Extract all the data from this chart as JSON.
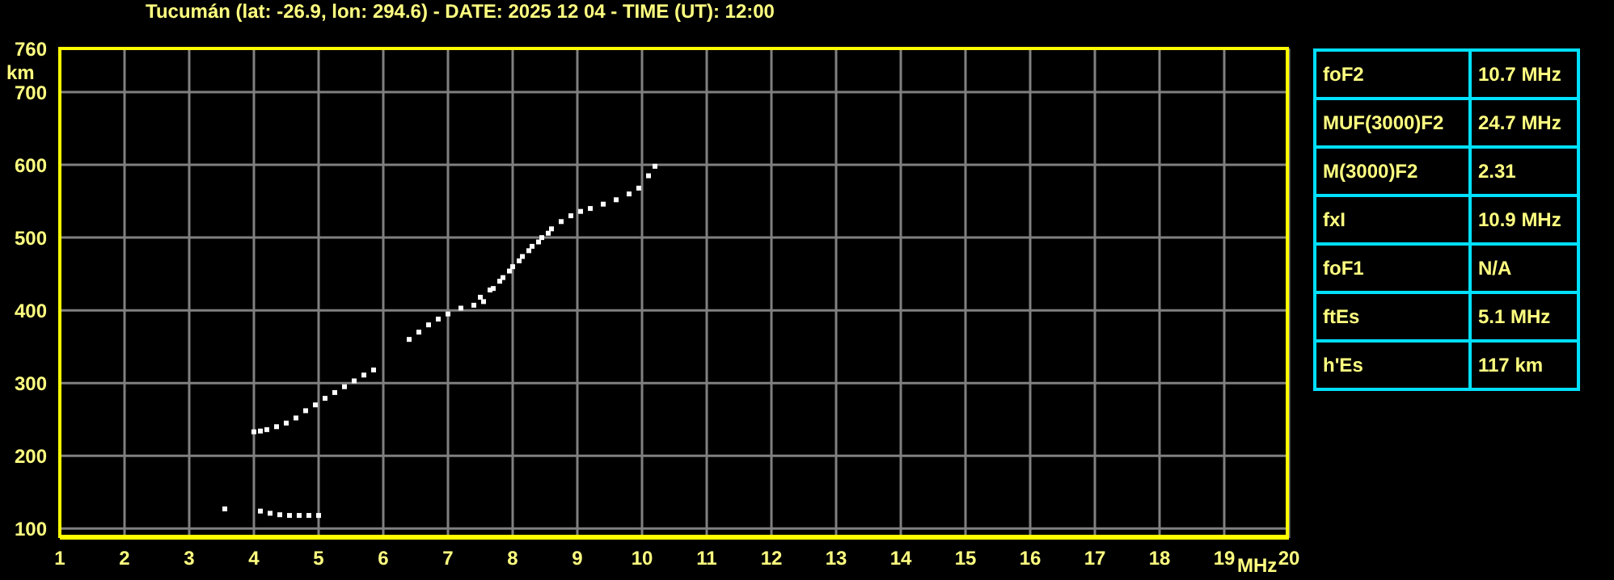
{
  "chart_data": [
    {
      "type": "scatter",
      "title": "Tucumán (lat: -26.9, lon: 294.6) - DATE: 2025 12 04 - TIME (UT): 12:00",
      "xlabel": "MHz",
      "ylabel": "km",
      "xlim": [
        1,
        20
      ],
      "xticks": [
        1,
        2,
        3,
        4,
        5,
        6,
        7,
        8,
        9,
        10,
        11,
        12,
        13,
        14,
        15,
        16,
        17,
        18,
        19,
        20
      ],
      "ylim": [
        87,
        760
      ],
      "yticks": [
        100,
        200,
        300,
        400,
        500,
        600,
        700,
        760
      ],
      "grid": true,
      "marker": "square",
      "series": [
        {
          "color": "#ffffff",
          "x": [
            4.0,
            4.1,
            4.2,
            4.35,
            4.5,
            4.65,
            4.8,
            4.95,
            5.1,
            5.25,
            5.4,
            5.55,
            5.7,
            5.85,
            6.4,
            6.55,
            6.7,
            6.85,
            7.0,
            7.2,
            7.4,
            7.55,
            7.7,
            7.85,
            8.0,
            8.15,
            8.3,
            8.45,
            8.6,
            8.75,
            8.9,
            9.05,
            9.2,
            9.4,
            9.6,
            9.8,
            9.95,
            10.1,
            10.2
          ],
          "values": [
            233,
            234,
            236,
            240,
            245,
            252,
            262,
            270,
            279,
            287,
            295,
            303,
            311,
            318,
            360,
            370,
            380,
            388,
            395,
            403,
            407,
            412,
            430,
            445,
            460,
            474,
            488,
            500,
            512,
            522,
            530,
            536,
            540,
            546,
            552,
            560,
            568,
            585,
            598
          ]
        },
        {
          "color": "#ffffff",
          "x": [
            7.5,
            7.65,
            7.8,
            7.95,
            8.1,
            8.25,
            8.4,
            8.55
          ],
          "values": [
            418,
            428,
            440,
            454,
            468,
            482,
            494,
            506
          ]
        },
        {
          "color": "#ffffff",
          "x": [
            3.55,
            4.1,
            4.25,
            4.4,
            4.55,
            4.7,
            4.85,
            5.0
          ],
          "values": [
            127,
            124,
            121,
            119,
            118,
            118,
            118,
            118
          ]
        }
      ]
    },
    {
      "type": "other",
      "annotations": [
        "foF2",
        "10.7 MHz",
        "MUF(3000)F2",
        "24.7 MHz",
        "M(3000)F2",
        "2.31",
        "fxI",
        "10.9 MHz",
        "foF1",
        "N/A",
        "ftEs",
        "5.1 MHz",
        "h'Es",
        "117 km"
      ]
    }
  ]
}
